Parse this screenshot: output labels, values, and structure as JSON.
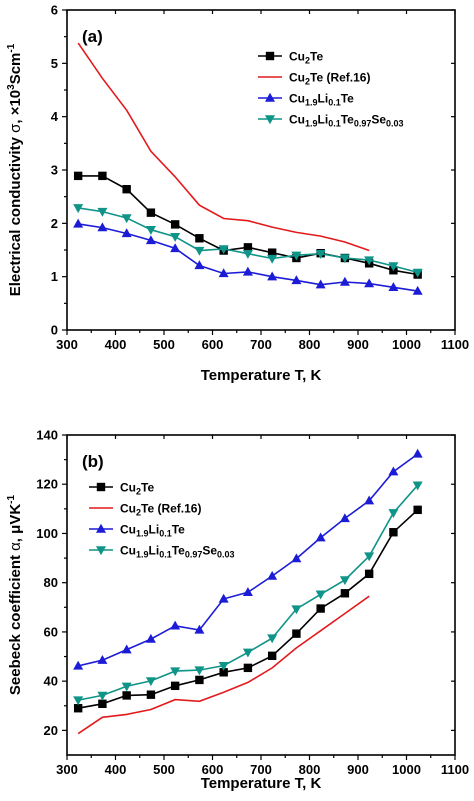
{
  "chart_data": [
    {
      "type": "line",
      "panel_label": "(a)",
      "xlabel": "Temperature T, K",
      "ylabel": [
        "Electrical conductivity ",
        "σ",
        ", ×10",
        "3",
        "Scm",
        "-1"
      ],
      "xlim": [
        300,
        1100
      ],
      "ylim": [
        0,
        6
      ],
      "xticks": [
        300,
        400,
        500,
        600,
        700,
        800,
        900,
        1000,
        1100
      ],
      "yticks": [
        0,
        1,
        2,
        3,
        4,
        5,
        6
      ],
      "legend_position": "top-right",
      "series": [
        {
          "name": [
            [
              "Cu",
              ""
            ],
            [
              "2",
              "sub"
            ],
            [
              "Te",
              ""
            ]
          ],
          "color": "#000000",
          "marker": "square",
          "x": [
            323,
            373,
            423,
            473,
            523,
            573,
            623,
            673,
            723,
            773,
            823,
            873,
            923,
            973,
            1023
          ],
          "y": [
            2.89,
            2.89,
            2.64,
            2.2,
            1.98,
            1.72,
            1.49,
            1.55,
            1.45,
            1.35,
            1.44,
            1.35,
            1.25,
            1.12,
            1.04
          ]
        },
        {
          "name": [
            [
              "Cu",
              ""
            ],
            [
              "2",
              "sub"
            ],
            [
              "Te (Ref.16)",
              ""
            ]
          ],
          "color": "#e31a1c",
          "marker": "none",
          "x": [
            323,
            373,
            423,
            473,
            523,
            573,
            623,
            673,
            723,
            773,
            823,
            873,
            923
          ],
          "y": [
            5.38,
            4.72,
            4.12,
            3.35,
            2.87,
            2.34,
            2.09,
            2.05,
            1.93,
            1.83,
            1.76,
            1.65,
            1.49
          ]
        },
        {
          "name": [
            [
              "Cu",
              ""
            ],
            [
              "1.9",
              "sub"
            ],
            [
              "Li",
              ""
            ],
            [
              "0.1",
              "sub"
            ],
            [
              "Te",
              ""
            ]
          ],
          "color": "#1c1cd6",
          "marker": "triangle-up",
          "x": [
            323,
            373,
            423,
            473,
            523,
            573,
            623,
            673,
            723,
            773,
            823,
            873,
            923,
            973,
            1023
          ],
          "y": [
            1.99,
            1.92,
            1.81,
            1.68,
            1.53,
            1.21,
            1.06,
            1.09,
            1.0,
            0.93,
            0.85,
            0.9,
            0.87,
            0.8,
            0.73
          ]
        },
        {
          "name": [
            [
              "Cu",
              ""
            ],
            [
              "1.9",
              "sub"
            ],
            [
              "Li",
              ""
            ],
            [
              "0.1",
              "sub"
            ],
            [
              "Te",
              ""
            ],
            [
              "0.97",
              "sub"
            ],
            [
              "Se",
              ""
            ],
            [
              "0.03",
              "sub"
            ]
          ],
          "color": "#0f9488",
          "marker": "triangle-down",
          "x": [
            323,
            373,
            423,
            473,
            523,
            573,
            623,
            673,
            723,
            773,
            823,
            873,
            923,
            973,
            1023
          ],
          "y": [
            2.29,
            2.22,
            2.1,
            1.88,
            1.75,
            1.49,
            1.52,
            1.43,
            1.34,
            1.4,
            1.43,
            1.35,
            1.31,
            1.2,
            1.08
          ]
        }
      ]
    },
    {
      "type": "line",
      "panel_label": "(b)",
      "xlabel": "Temperature T, K",
      "ylabel": [
        "Seebeck coefficient ",
        "α",
        ", μVK",
        "-1"
      ],
      "xlim": [
        300,
        1100
      ],
      "ylim": [
        10,
        140
      ],
      "xticks": [
        300,
        400,
        500,
        600,
        700,
        800,
        900,
        1000,
        1100
      ],
      "yticks": [
        20,
        40,
        60,
        80,
        100,
        120,
        140
      ],
      "legend_position": "top-left",
      "series": [
        {
          "name": [
            [
              "Cu",
              ""
            ],
            [
              "2",
              "sub"
            ],
            [
              "Te",
              ""
            ]
          ],
          "color": "#000000",
          "marker": "square",
          "x": [
            323,
            373,
            423,
            473,
            523,
            573,
            623,
            673,
            723,
            773,
            823,
            873,
            923,
            973,
            1023
          ],
          "y": [
            29,
            30.8,
            34.2,
            34.5,
            38.1,
            40.5,
            43.6,
            45.4,
            50.3,
            59.3,
            69.5,
            75.7,
            83.6,
            100.5,
            109.6
          ]
        },
        {
          "name": [
            [
              "Cu",
              ""
            ],
            [
              "2",
              "sub"
            ],
            [
              "Te (Ref.16)",
              ""
            ]
          ],
          "color": "#e31a1c",
          "marker": "none",
          "x": [
            323,
            373,
            423,
            473,
            523,
            573,
            623,
            673,
            723,
            773,
            823,
            873,
            923
          ],
          "y": [
            18.7,
            25.3,
            26.5,
            28.5,
            32.5,
            31.8,
            35.5,
            39.5,
            45.4,
            53.5,
            60.5,
            67.5,
            74.5
          ]
        },
        {
          "name": [
            [
              "Cu",
              ""
            ],
            [
              "1.9",
              "sub"
            ],
            [
              "Li",
              ""
            ],
            [
              "0.1",
              "sub"
            ],
            [
              "Te",
              ""
            ]
          ],
          "color": "#1c1cd6",
          "marker": "triangle-up",
          "x": [
            323,
            373,
            423,
            473,
            523,
            573,
            623,
            673,
            723,
            773,
            823,
            873,
            923,
            973,
            1023
          ],
          "y": [
            46.2,
            48.5,
            52.8,
            57.1,
            62.5,
            60.8,
            73.4,
            76.1,
            82.7,
            89.8,
            98.3,
            106.1,
            113.3,
            125.1,
            132.3
          ]
        },
        {
          "name": [
            [
              "Cu",
              ""
            ],
            [
              "1.9",
              "sub"
            ],
            [
              "Li",
              ""
            ],
            [
              "0.1",
              "sub"
            ],
            [
              "Te",
              ""
            ],
            [
              "0.97",
              "sub"
            ],
            [
              "Se",
              ""
            ],
            [
              "0.03",
              "sub"
            ]
          ],
          "color": "#0f9488",
          "marker": "triangle-down",
          "x": [
            323,
            373,
            423,
            473,
            523,
            573,
            623,
            673,
            723,
            773,
            823,
            873,
            923,
            973,
            1023
          ],
          "y": [
            32.3,
            34.2,
            37.9,
            40.1,
            44.1,
            44.5,
            46.3,
            51.7,
            57.5,
            69.3,
            75.3,
            81.1,
            90.8,
            108.4,
            119.6
          ]
        }
      ]
    }
  ]
}
